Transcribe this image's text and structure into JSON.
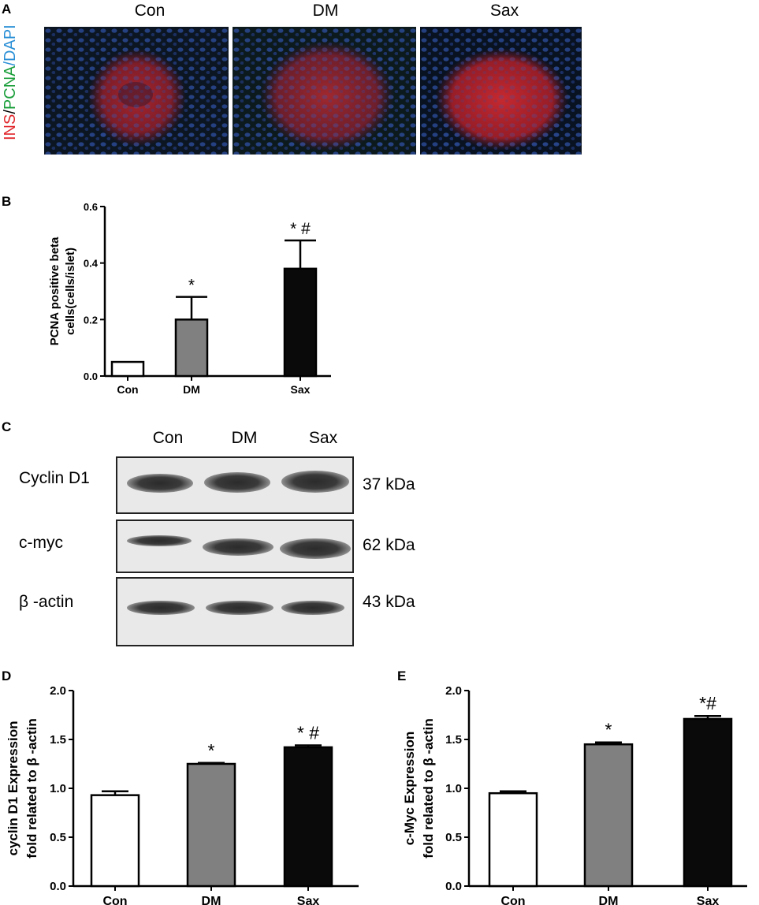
{
  "panel_a": {
    "letter": "A",
    "groups": [
      "Con",
      "DM",
      "Sax"
    ],
    "stain_label": {
      "ins": "INS",
      "sep1": "/",
      "pcna": "PCNA",
      "sep2": "/",
      "dapi": "DAPI"
    },
    "colors": {
      "ins": "#e0262b",
      "pcna": "#1a9e3a",
      "dapi": "#2a8fd6"
    }
  },
  "panel_c": {
    "letter": "C",
    "groups": [
      "Con",
      "DM",
      "Sax"
    ],
    "rows": [
      {
        "label": "Cyclin D1",
        "kda": "37 kDa"
      },
      {
        "label": "c-myc",
        "kda": "62 kDa"
      },
      {
        "label": "β -actin",
        "kda": "43 kDa"
      }
    ]
  },
  "chart_data": [
    {
      "panel": "B",
      "type": "bar",
      "categories": [
        "Con",
        "DM",
        "Sax"
      ],
      "values": [
        0.05,
        0.2,
        0.38
      ],
      "errors": [
        0.0,
        0.08,
        0.1
      ],
      "annotations": [
        "",
        "*",
        "* #"
      ],
      "ylabel_lines": [
        "PCNA positive beta",
        "cells(cells/islet)"
      ],
      "ylim": [
        0,
        0.6
      ],
      "yticks": [
        "0.0",
        "0.2",
        "0.4",
        "0.6"
      ],
      "bar_colors": [
        "#ffffff",
        "#808080",
        "#0a0a0a"
      ]
    },
    {
      "panel": "D",
      "type": "bar",
      "categories": [
        "Con",
        "DM",
        "Sax"
      ],
      "values": [
        0.93,
        1.25,
        1.42
      ],
      "errors": [
        0.04,
        0.01,
        0.02
      ],
      "annotations": [
        "",
        "*",
        "* #"
      ],
      "ylabel_lines": [
        "cyclin D1 Expression",
        "fold related to β -actin"
      ],
      "ylim": [
        0,
        2.0
      ],
      "yticks": [
        "0.0",
        "0.5",
        "1.0",
        "1.5",
        "2.0"
      ],
      "bar_colors": [
        "#ffffff",
        "#808080",
        "#0a0a0a"
      ]
    },
    {
      "panel": "E",
      "type": "bar",
      "categories": [
        "Con",
        "DM",
        "Sax"
      ],
      "values": [
        0.95,
        1.45,
        1.71
      ],
      "errors": [
        0.02,
        0.02,
        0.03
      ],
      "annotations": [
        "",
        "*",
        "*#"
      ],
      "ylabel_lines": [
        "c-Myc Expression",
        "fold related to β -actin"
      ],
      "ylim": [
        0,
        2.0
      ],
      "yticks": [
        "0.0",
        "0.5",
        "1.0",
        "1.5",
        "2.0"
      ],
      "bar_colors": [
        "#ffffff",
        "#808080",
        "#0a0a0a"
      ]
    }
  ]
}
